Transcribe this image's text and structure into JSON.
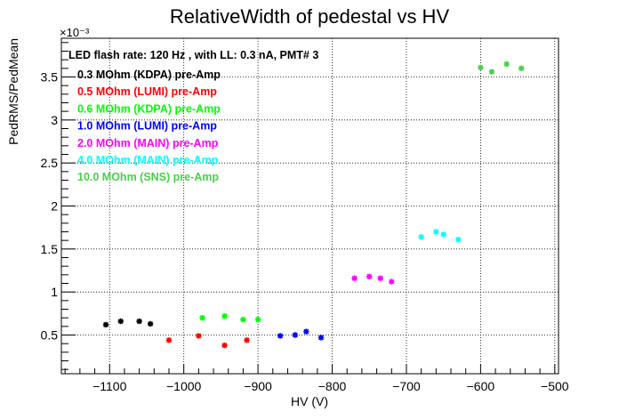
{
  "chart_data": {
    "type": "scatter",
    "title": "RelativeWidth of pedestal vs HV",
    "xlabel": "HV (V)",
    "ylabel": "PedRMS/PedMean",
    "y_multiplier": "×10⁻³",
    "xlim": [
      -1165,
      -495
    ],
    "ylim": [
      0.05,
      3.95
    ],
    "x_ticks": [
      -1100,
      -1000,
      -900,
      -800,
      -700,
      -600,
      -500
    ],
    "y_ticks": [
      0.5,
      1,
      1.5,
      2,
      2.5,
      3,
      3.5
    ],
    "x_tick_labels": [
      "−1100",
      "−1000",
      "−900",
      "−800",
      "−700",
      "−600",
      "−500"
    ],
    "y_tick_labels": [
      "0.5",
      "1",
      "1.5",
      "2",
      "2.5",
      "3",
      "3.5"
    ],
    "grid": true,
    "legend_header": "LED flash rate: 120 Hz , with LL: 0.3 nA, PMT# 3",
    "legend_position": "top-left",
    "series": [
      {
        "name": "0.3 MOhm (KDPA) pre-Amp",
        "color": "#000000",
        "x": [
          -1105,
          -1085,
          -1060,
          -1045
        ],
        "y": [
          0.62,
          0.66,
          0.66,
          0.63
        ]
      },
      {
        "name": "0.5 MOhm (LUMI) pre-Amp",
        "color": "#ff0000",
        "x": [
          -1020,
          -980,
          -945,
          -915
        ],
        "y": [
          0.44,
          0.49,
          0.38,
          0.44
        ]
      },
      {
        "name": "0.6 MOhm (KDPA) pre-Amp",
        "color": "#00ff00",
        "x": [
          -975,
          -945,
          -920,
          -900
        ],
        "y": [
          0.7,
          0.72,
          0.68,
          0.68
        ]
      },
      {
        "name": "1.0 MOhm (LUMI) pre-Amp",
        "color": "#0000ff",
        "x": [
          -870,
          -850,
          -835,
          -815
        ],
        "y": [
          0.49,
          0.5,
          0.54,
          0.47
        ]
      },
      {
        "name": "2.0 MOhm (MAIN) pre-Amp",
        "color": "#ff00ff",
        "x": [
          -770,
          -750,
          -735,
          -720
        ],
        "y": [
          1.16,
          1.18,
          1.16,
          1.12
        ]
      },
      {
        "name": "4.0 MOhm (MAIN) pre-Amp",
        "color": "#00ffff",
        "x": [
          -680,
          -660,
          -650,
          -630
        ],
        "y": [
          1.64,
          1.7,
          1.67,
          1.61
        ]
      },
      {
        "name": "10.0 MOhm (SNS) pre-Amp",
        "color": "#47d147",
        "x": [
          -600,
          -585,
          -565,
          -545
        ],
        "y": [
          3.61,
          3.56,
          3.65,
          3.6
        ]
      }
    ]
  }
}
